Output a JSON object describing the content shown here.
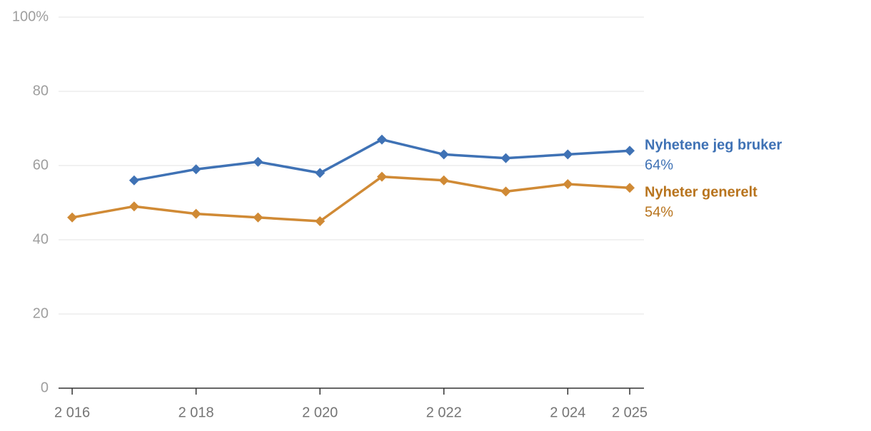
{
  "chart_data": {
    "type": "line",
    "x": [
      2016,
      2017,
      2018,
      2019,
      2020,
      2021,
      2022,
      2023,
      2024,
      2025
    ],
    "series": [
      {
        "name": "Nyhetene jeg bruker",
        "color": "#3f72b5",
        "label_color": "#3f72b5",
        "values": [
          null,
          56,
          59,
          61,
          58,
          67,
          63,
          62,
          63,
          64
        ],
        "value_labels": [
          null,
          null,
          null,
          null,
          null,
          null,
          null,
          null,
          null,
          "64%"
        ]
      },
      {
        "name": "Nyheter generelt",
        "color": "#d08a35",
        "label_color": "#b8741e",
        "values": [
          46,
          49,
          47,
          46,
          45,
          57,
          56,
          53,
          55,
          54
        ],
        "value_labels": [
          null,
          null,
          null,
          null,
          null,
          null,
          null,
          null,
          null,
          "54%"
        ]
      }
    ],
    "xlim": [
      2015.78,
      2025.23
    ],
    "xticks": [
      {
        "value": 2016,
        "label": "2 016"
      },
      {
        "value": 2018,
        "label": "2 018"
      },
      {
        "value": 2020,
        "label": "2 020"
      },
      {
        "value": 2022,
        "label": "2 022"
      },
      {
        "value": 2024,
        "label": "2 024"
      },
      {
        "value": 2025,
        "label": "2 025"
      }
    ],
    "ylim": [
      0,
      100
    ],
    "yticks": [
      0,
      20,
      40,
      60,
      80,
      {
        "value": 100,
        "label": "100%"
      }
    ],
    "grid": true
  }
}
